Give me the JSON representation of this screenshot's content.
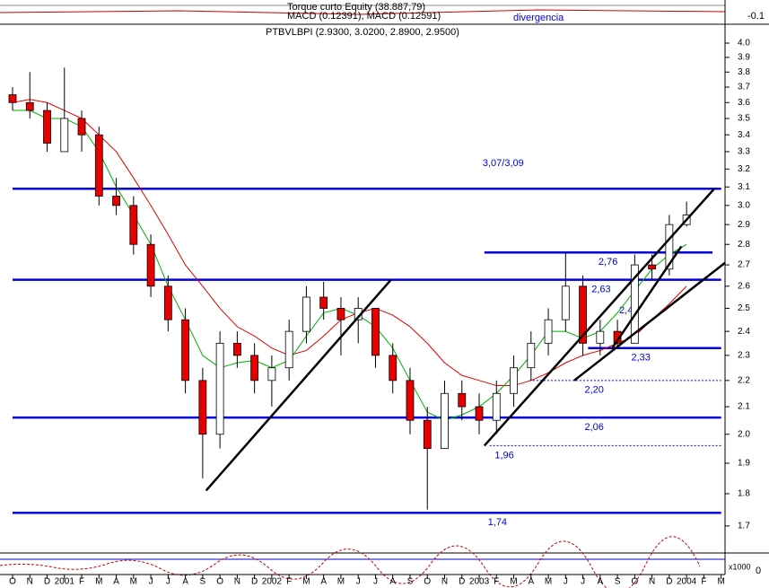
{
  "header": {
    "indicator": "Torque curto Equity (38.887,79)",
    "macd": "MACD (0.12391), MACD (0.12591)",
    "note": "divergencia",
    "scale": "-0.1"
  },
  "volume_panel": {
    "unit": "x1000",
    "zero": "0"
  },
  "chart_data": {
    "type": "candlestick",
    "title": "PTBVLBPI (2.9300, 3.0200, 2.8900, 2.9500)",
    "categories": [
      "O",
      "N",
      "D",
      "2001",
      "F",
      "M",
      "A",
      "M",
      "J",
      "J",
      "A",
      "S",
      "O",
      "N",
      "D",
      "2002",
      "F",
      "M",
      "A",
      "M",
      "J",
      "J",
      "A",
      "S",
      "O",
      "N",
      "D",
      "2003",
      "F",
      "M",
      "A",
      "M",
      "J",
      "J",
      "A",
      "S",
      "O",
      "N",
      "D",
      "2004",
      "F",
      "M"
    ],
    "open": [
      3.65,
      3.6,
      3.55,
      3.3,
      3.5,
      3.4,
      3.05,
      3.0,
      2.8,
      2.6,
      2.45,
      2.2,
      2.0,
      2.35,
      2.3,
      2.2,
      2.25,
      2.4,
      2.55,
      2.5,
      2.45,
      2.5,
      2.3,
      2.2,
      2.05,
      1.95,
      2.15,
      2.1,
      2.05,
      2.15,
      2.25,
      2.35,
      2.45,
      2.6,
      2.35,
      2.4,
      2.35,
      2.7,
      2.68,
      2.9,
      null,
      null
    ],
    "high": [
      3.7,
      3.8,
      3.6,
      3.83,
      3.55,
      3.45,
      3.15,
      3.05,
      2.85,
      2.65,
      2.5,
      2.25,
      2.4,
      2.4,
      2.35,
      2.3,
      2.45,
      2.6,
      2.62,
      2.55,
      2.55,
      2.5,
      2.35,
      2.25,
      2.1,
      2.2,
      2.2,
      2.15,
      2.2,
      2.3,
      2.4,
      2.5,
      2.76,
      2.65,
      2.45,
      2.45,
      2.75,
      2.75,
      2.95,
      3.02,
      null,
      null
    ],
    "low": [
      3.55,
      3.5,
      3.3,
      3.3,
      3.3,
      3.0,
      2.95,
      2.75,
      2.55,
      2.4,
      2.15,
      1.85,
      1.95,
      2.25,
      2.15,
      2.1,
      2.2,
      2.35,
      2.45,
      2.3,
      2.35,
      2.25,
      2.15,
      2.0,
      1.75,
      1.95,
      2.05,
      2.0,
      2.0,
      2.1,
      2.2,
      2.3,
      2.4,
      2.3,
      2.3,
      2.33,
      2.35,
      2.63,
      2.65,
      2.89,
      null,
      null
    ],
    "close": [
      3.6,
      3.55,
      3.35,
      3.5,
      3.4,
      3.05,
      3.0,
      2.8,
      2.6,
      2.45,
      2.2,
      2.0,
      2.35,
      2.3,
      2.2,
      2.25,
      2.4,
      2.55,
      2.5,
      2.45,
      2.5,
      2.3,
      2.2,
      2.05,
      1.95,
      2.15,
      2.1,
      2.05,
      2.15,
      2.25,
      2.35,
      2.45,
      2.6,
      2.35,
      2.4,
      2.35,
      2.7,
      2.68,
      2.9,
      2.95,
      null,
      null
    ],
    "up_color": "#ffffff",
    "down_color": "#e60000",
    "series": [
      {
        "color": "#e00000",
        "values": [
          3.6,
          3.62,
          3.6,
          3.55,
          3.5,
          3.4,
          3.3,
          3.15,
          3.0,
          2.85,
          2.7,
          2.6,
          2.5,
          2.42,
          2.38,
          2.33,
          2.3,
          2.32,
          2.38,
          2.45,
          2.48,
          2.5,
          2.47,
          2.42,
          2.35,
          2.27,
          2.22,
          2.2,
          2.18,
          2.18,
          2.2,
          2.23,
          2.27,
          2.3,
          2.32,
          2.35,
          2.38,
          2.45,
          2.52,
          2.6,
          null,
          null
        ]
      },
      {
        "color": "#00b000",
        "values": [
          3.55,
          3.55,
          3.5,
          3.5,
          3.45,
          3.3,
          3.1,
          2.95,
          2.8,
          2.6,
          2.45,
          2.3,
          2.25,
          2.27,
          2.28,
          2.25,
          2.28,
          2.38,
          2.48,
          2.5,
          2.47,
          2.42,
          2.33,
          2.2,
          2.08,
          2.05,
          2.07,
          2.1,
          2.15,
          2.22,
          2.3,
          2.4,
          2.4,
          2.37,
          2.4,
          2.48,
          2.58,
          2.68,
          2.75,
          2.8,
          null,
          null
        ]
      }
    ],
    "levels": [
      {
        "value": 3.09,
        "label": "3,07/3,09",
        "start": 0,
        "end": 41,
        "style": "solid",
        "label_x": 27.2,
        "label_side": "above"
      },
      {
        "value": 2.76,
        "label": "2,76",
        "start": 27.3,
        "end": 40.5,
        "style": "solid",
        "label_x": 33.9,
        "label_side": "below"
      },
      {
        "value": 2.63,
        "label": "2,63",
        "start": 0,
        "end": 41,
        "style": "solid",
        "label_x": 33.5,
        "label_side": "below"
      },
      {
        "value": 2.49,
        "label": "2,49",
        "start": 35,
        "end": 35,
        "style": "none",
        "label_x": 35.1,
        "label_side": "on"
      },
      {
        "value": 2.33,
        "label": "2,33",
        "start": 33.3,
        "end": 41,
        "style": "solid",
        "label_x": 35.8,
        "label_side": "below"
      },
      {
        "value": 2.2,
        "label": "2,20",
        "start": 29.9,
        "end": 41,
        "style": "dotted",
        "label_x": 33.1,
        "label_side": "below"
      },
      {
        "value": 2.06,
        "label": "2,06",
        "start": 0,
        "end": 41,
        "style": "solid",
        "label_x": 33.1,
        "label_side": "below"
      },
      {
        "value": 1.96,
        "label": "1,96",
        "start": 27.6,
        "end": 41,
        "style": "dotted",
        "label_x": 27.9,
        "label_side": "below"
      },
      {
        "value": 1.74,
        "label": "1,74",
        "start": 0,
        "end": 41,
        "style": "solid",
        "label_x": 27.5,
        "label_side": "below"
      }
    ],
    "level_color": "#0000e0",
    "trendlines": [
      {
        "x": [
          11.2,
          21.9
        ],
        "y": [
          1.81,
          2.63
        ]
      },
      {
        "x": [
          27.3,
          40.6
        ],
        "y": [
          1.96,
          3.09
        ]
      },
      {
        "x": [
          32.5,
          41.3
        ],
        "y": [
          2.2,
          2.71
        ]
      },
      {
        "x": [
          34.7,
          38.7
        ],
        "y": [
          2.33,
          2.79
        ]
      }
    ],
    "ylim": [
      1.6,
      4.1
    ],
    "log_scale": true,
    "yticks": [
      1.7,
      1.8,
      1.9,
      {
        "value": 2,
        "label": "2.0"
      },
      2.1,
      2.2,
      2.3,
      2.4,
      2.5,
      2.6,
      2.7,
      2.8,
      2.9,
      {
        "value": 3,
        "label": "3.0"
      },
      3.1,
      3.2,
      3.3,
      3.4,
      3.5,
      3.6,
      3.7,
      3.8,
      3.9,
      {
        "value": 4,
        "label": "4.0"
      }
    ]
  }
}
